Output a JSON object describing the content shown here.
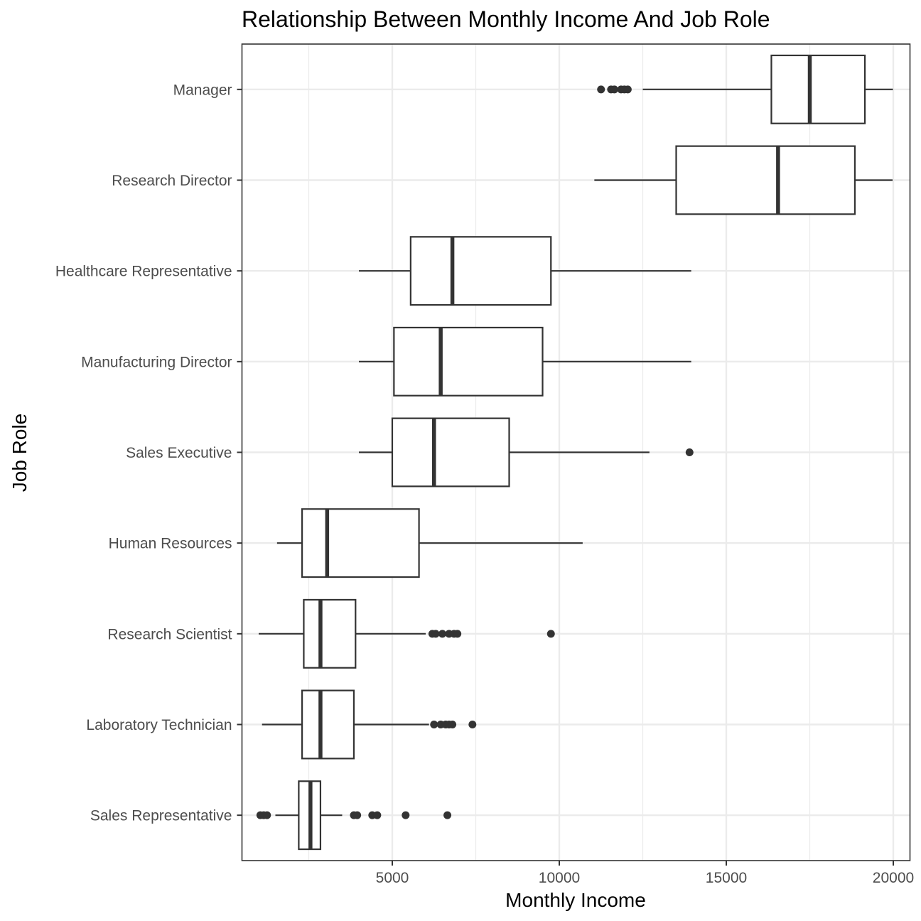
{
  "chart_data": {
    "type": "boxplot",
    "orientation": "horizontal",
    "title": "Relationship Between Monthly Income And Job Role",
    "xlabel": "Monthly Income",
    "ylabel": "Job Role",
    "xlim": [
      500,
      20500
    ],
    "x_ticks": [
      5000,
      10000,
      15000,
      20000
    ],
    "x_tick_labels": [
      "5000",
      "10000",
      "15000",
      "20000"
    ],
    "grid": true,
    "categories": [
      "Manager",
      "Research Director",
      "Healthcare Representative",
      "Manufacturing Director",
      "Sales Executive",
      "Human Resources",
      "Research Scientist",
      "Laboratory Technician",
      "Sales Representative"
    ],
    "boxes": [
      {
        "category": "Manager",
        "whisker_low": 12500,
        "q1": 16350,
        "median": 17500,
        "q3": 19150,
        "whisker_high": 19990,
        "outliers": [
          11250,
          11550,
          11650,
          11850,
          11950,
          12050
        ]
      },
      {
        "category": "Research Director",
        "whisker_low": 11050,
        "q1": 13500,
        "median": 16550,
        "q3": 18850,
        "whisker_high": 19980,
        "outliers": []
      },
      {
        "category": "Healthcare Representative",
        "whisker_low": 4000,
        "q1": 5550,
        "median": 6800,
        "q3": 9750,
        "whisker_high": 13950,
        "outliers": []
      },
      {
        "category": "Manufacturing Director",
        "whisker_low": 4000,
        "q1": 5050,
        "median": 6450,
        "q3": 9500,
        "whisker_high": 13950,
        "outliers": []
      },
      {
        "category": "Sales Executive",
        "whisker_low": 4000,
        "q1": 5000,
        "median": 6250,
        "q3": 8500,
        "whisker_high": 12700,
        "outliers": [
          13900
        ]
      },
      {
        "category": "Human Resources",
        "whisker_low": 1550,
        "q1": 2300,
        "median": 3050,
        "q3": 5800,
        "whisker_high": 10700,
        "outliers": []
      },
      {
        "category": "Research Scientist",
        "whisker_low": 1000,
        "q1": 2350,
        "median": 2850,
        "q3": 3900,
        "whisker_high": 6000,
        "outliers": [
          6200,
          6300,
          6500,
          6700,
          6850,
          6950,
          9750
        ]
      },
      {
        "category": "Laboratory Technician",
        "whisker_low": 1100,
        "q1": 2300,
        "median": 2850,
        "q3": 3850,
        "whisker_high": 6100,
        "outliers": [
          6250,
          6450,
          6600,
          6700,
          6800,
          7400
        ]
      },
      {
        "category": "Sales Representative",
        "whisker_low": 1500,
        "q1": 2200,
        "median": 2550,
        "q3": 2850,
        "whisker_high": 3500,
        "outliers": [
          1050,
          1150,
          1250,
          3850,
          3950,
          4400,
          4550,
          5400,
          6650
        ]
      }
    ]
  }
}
